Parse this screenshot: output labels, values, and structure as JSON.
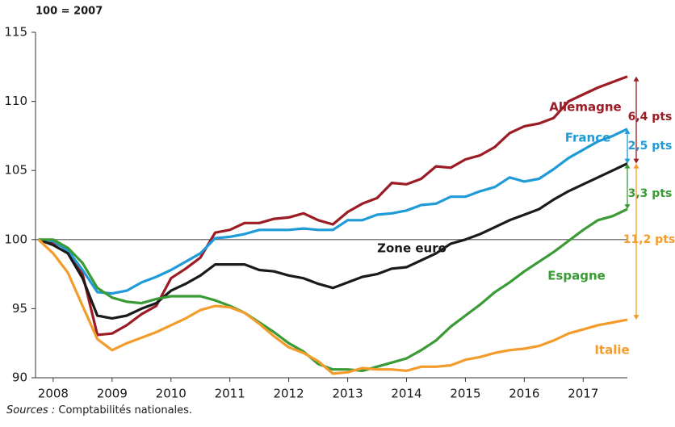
{
  "chart_data": {
    "type": "line",
    "subtitle": "100 = 2007",
    "source_label": "Sources :",
    "source_text": "Comptabilités nationales.",
    "x": [
      2007.75,
      2008,
      2008.25,
      2008.5,
      2008.75,
      2009,
      2009.25,
      2009.5,
      2009.75,
      2010,
      2010.25,
      2010.5,
      2010.75,
      2011,
      2011.25,
      2011.5,
      2011.75,
      2012,
      2012.25,
      2012.5,
      2012.75,
      2013,
      2013.25,
      2013.5,
      2013.75,
      2014,
      2014.25,
      2014.5,
      2014.75,
      2015,
      2015.25,
      2015.5,
      2015.75,
      2016,
      2016.25,
      2016.5,
      2016.75,
      2017,
      2017.25,
      2017.5,
      2017.75
    ],
    "series": [
      {
        "name": "Allemagne",
        "color": "#9b1c24",
        "values": [
          100,
          99.8,
          99.3,
          97.5,
          93.1,
          93.2,
          93.8,
          94.6,
          95.2,
          97.2,
          97.9,
          98.7,
          100.5,
          100.7,
          101.2,
          101.2,
          101.5,
          101.6,
          101.9,
          101.4,
          101.1,
          102.0,
          102.6,
          103.0,
          104.1,
          104.0,
          104.4,
          105.3,
          105.2,
          105.8,
          106.1,
          106.7,
          107.7,
          108.2,
          108.4,
          108.8,
          110.0,
          110.5,
          111.0,
          111.4,
          111.8
        ]
      },
      {
        "name": "France",
        "color": "#1e9bd7",
        "values": [
          100,
          99.9,
          99.2,
          97.8,
          96.2,
          96.1,
          96.3,
          96.9,
          97.3,
          97.8,
          98.4,
          99.0,
          100.1,
          100.2,
          100.4,
          100.7,
          100.7,
          100.7,
          100.8,
          100.7,
          100.7,
          101.4,
          101.4,
          101.8,
          101.9,
          102.1,
          102.5,
          102.6,
          103.1,
          103.1,
          103.5,
          103.8,
          104.5,
          104.2,
          104.4,
          105.1,
          105.9,
          106.5,
          107.1,
          107.5,
          108.0
        ]
      },
      {
        "name": "Zone euro",
        "color": "#1a1a1a",
        "values": [
          100,
          99.6,
          99.0,
          97.2,
          94.5,
          94.3,
          94.5,
          95.0,
          95.4,
          96.3,
          96.8,
          97.4,
          98.2,
          98.2,
          98.2,
          97.8,
          97.7,
          97.4,
          97.2,
          96.8,
          96.5,
          96.9,
          97.3,
          97.5,
          97.9,
          98.0,
          98.5,
          99.0,
          99.7,
          100.0,
          100.4,
          100.9,
          101.4,
          101.8,
          102.2,
          102.9,
          103.5,
          104.0,
          104.5,
          105.0,
          105.5
        ]
      },
      {
        "name": "Espagne",
        "color": "#3a9a35",
        "values": [
          100,
          100,
          99.4,
          98.3,
          96.5,
          95.8,
          95.5,
          95.4,
          95.7,
          95.9,
          95.9,
          95.9,
          95.6,
          95.2,
          94.7,
          94.0,
          93.3,
          92.5,
          91.9,
          91.0,
          90.6,
          90.6,
          90.5,
          90.8,
          91.1,
          91.4,
          92.0,
          92.7,
          93.7,
          94.5,
          95.3,
          96.2,
          96.9,
          97.7,
          98.4,
          99.1,
          99.9,
          100.7,
          101.4,
          101.7,
          102.2
        ]
      },
      {
        "name": "Italie",
        "color": "#f39c2b",
        "values": [
          100,
          99.0,
          97.6,
          95.2,
          92.8,
          92.0,
          92.5,
          92.9,
          93.3,
          93.8,
          94.3,
          94.9,
          95.2,
          95.1,
          94.7,
          93.9,
          93.0,
          92.2,
          91.8,
          91.2,
          90.3,
          90.4,
          90.7,
          90.6,
          90.6,
          90.5,
          90.8,
          90.8,
          90.9,
          91.3,
          91.5,
          91.8,
          92.0,
          92.1,
          92.3,
          92.7,
          93.2,
          93.5,
          93.8,
          94.0,
          94.2
        ]
      }
    ],
    "annotations": [
      {
        "text": "6,4 pts",
        "color": "#9b1c24"
      },
      {
        "text": "2,5 pts",
        "color": "#1e9bd7"
      },
      {
        "text": "3,3 pts",
        "color": "#3a9a35"
      },
      {
        "text": "11,2 pts",
        "color": "#f39c2b"
      }
    ],
    "reference_line": 100,
    "xlim": [
      2007.7,
      2017.75
    ],
    "xticks": [
      2008,
      2009,
      2010,
      2011,
      2012,
      2013,
      2014,
      2015,
      2016,
      2017
    ],
    "ylim": [
      90,
      115
    ],
    "yticks": [
      90,
      95,
      100,
      105,
      110,
      115
    ],
    "grid": false
  }
}
